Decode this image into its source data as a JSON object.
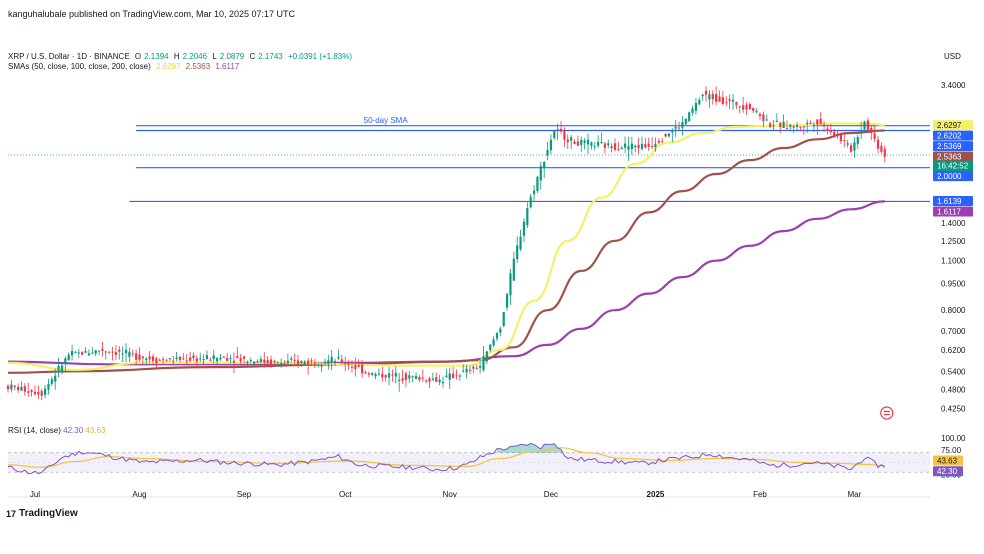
{
  "header": {
    "published": "kanguhalubale published on TradingView.com, Mar 10, 2025 07:17 UTC"
  },
  "legend": {
    "symbol": "XRP / U.S. Dollar · 1D · BINANCE",
    "o_label": "O",
    "o": "2.1394",
    "h_label": "H",
    "h": "2.2046",
    "l_label": "L",
    "l": "2.0879",
    "c_label": "C",
    "c": "2.1743",
    "change": "+0.0391 (+1.83%)",
    "sma_label": "SMAs (50, close, 100, close, 200, close)",
    "sma50": "2.6297",
    "sma100": "2.5363",
    "sma200": "1.6117"
  },
  "currency": "USD",
  "brand": "TradingView",
  "colors": {
    "up": "#089981",
    "down": "#f23645",
    "sma50": "#f5f06a",
    "sma100": "#a0524a",
    "sma200": "#9c3fb0",
    "hline": "#2962ff",
    "rsi": "#7e57c2",
    "rsi_ma": "#f5c242"
  },
  "chart_data": {
    "type": "candlestick",
    "y_scale": "log",
    "ylim": [
      0.4,
      3.7
    ],
    "y_ticks": [
      "3.4000",
      "1.4000",
      "1.2500",
      "1.1000",
      "0.9500",
      "0.8000",
      "0.7000",
      "0.6200",
      "0.5400",
      "0.4800",
      "0.4250"
    ],
    "x_labels": [
      {
        "label": "Jul",
        "day": 8,
        "bold": false
      },
      {
        "label": "Aug",
        "day": 39,
        "bold": false
      },
      {
        "label": "Sep",
        "day": 70,
        "bold": false
      },
      {
        "label": "Oct",
        "day": 100,
        "bold": false
      },
      {
        "label": "Nov",
        "day": 131,
        "bold": false
      },
      {
        "label": "Dec",
        "day": 161,
        "bold": false
      },
      {
        "label": "2025",
        "day": 192,
        "bold": true
      },
      {
        "label": "Feb",
        "day": 223,
        "bold": false
      },
      {
        "label": "Mar",
        "day": 251,
        "bold": false
      }
    ],
    "price_path": [
      [
        0,
        0.49
      ],
      [
        10,
        0.47
      ],
      [
        18,
        0.6
      ],
      [
        28,
        0.62
      ],
      [
        45,
        0.58
      ],
      [
        65,
        0.59
      ],
      [
        80,
        0.57
      ],
      [
        98,
        0.58
      ],
      [
        108,
        0.53
      ],
      [
        120,
        0.52
      ],
      [
        128,
        0.51
      ],
      [
        136,
        0.54
      ],
      [
        140,
        0.56
      ],
      [
        146,
        0.72
      ],
      [
        150,
        1.1
      ],
      [
        154,
        1.55
      ],
      [
        158,
        2.0
      ],
      [
        162,
        2.55
      ],
      [
        168,
        2.35
      ],
      [
        178,
        2.3
      ],
      [
        190,
        2.3
      ],
      [
        200,
        2.65
      ],
      [
        206,
        3.2
      ],
      [
        214,
        3.05
      ],
      [
        220,
        2.95
      ],
      [
        226,
        2.65
      ],
      [
        234,
        2.6
      ],
      [
        240,
        2.7
      ],
      [
        246,
        2.45
      ],
      [
        250,
        2.25
      ],
      [
        254,
        2.7
      ],
      [
        258,
        2.3
      ],
      [
        260,
        2.17
      ]
    ],
    "sma50_path": [
      [
        0,
        0.57
      ],
      [
        20,
        0.545
      ],
      [
        40,
        0.57
      ],
      [
        80,
        0.57
      ],
      [
        120,
        0.56
      ],
      [
        136,
        0.56
      ],
      [
        146,
        0.62
      ],
      [
        156,
        0.85
      ],
      [
        166,
        1.25
      ],
      [
        176,
        1.65
      ],
      [
        186,
        2.05
      ],
      [
        196,
        2.35
      ],
      [
        206,
        2.5
      ],
      [
        216,
        2.6
      ],
      [
        226,
        2.62
      ],
      [
        236,
        2.63
      ],
      [
        246,
        2.66
      ],
      [
        256,
        2.65
      ],
      [
        260,
        2.63
      ]
    ],
    "sma100_path": [
      [
        0,
        0.535
      ],
      [
        20,
        0.54
      ],
      [
        60,
        0.555
      ],
      [
        100,
        0.565
      ],
      [
        130,
        0.575
      ],
      [
        140,
        0.58
      ],
      [
        150,
        0.63
      ],
      [
        160,
        0.8
      ],
      [
        170,
        1.03
      ],
      [
        180,
        1.25
      ],
      [
        190,
        1.5
      ],
      [
        200,
        1.72
      ],
      [
        210,
        1.92
      ],
      [
        220,
        2.1
      ],
      [
        230,
        2.27
      ],
      [
        240,
        2.4
      ],
      [
        250,
        2.5
      ],
      [
        260,
        2.54
      ]
    ],
    "sma200_path": [
      [
        0,
        0.575
      ],
      [
        30,
        0.565
      ],
      [
        60,
        0.565
      ],
      [
        100,
        0.57
      ],
      [
        130,
        0.575
      ],
      [
        150,
        0.595
      ],
      [
        160,
        0.64
      ],
      [
        170,
        0.71
      ],
      [
        180,
        0.8
      ],
      [
        190,
        0.89
      ],
      [
        200,
        0.99
      ],
      [
        210,
        1.1
      ],
      [
        220,
        1.21
      ],
      [
        230,
        1.33
      ],
      [
        240,
        1.44
      ],
      [
        250,
        1.53
      ],
      [
        260,
        1.61
      ]
    ],
    "horizontal_lines": [
      {
        "value": 2.62,
        "start_day": 38
      },
      {
        "value": 2.54,
        "start_day": 38
      },
      {
        "value": 2.0,
        "start_day": 38
      },
      {
        "value": 1.61,
        "start_day": 36
      }
    ],
    "annotation": {
      "text": "50-day SMA",
      "day": 112,
      "value": 2.63
    },
    "price_badges": [
      {
        "text": "2.6297",
        "value": 2.6297,
        "bg": "#f5f06a",
        "fg": "dark"
      },
      {
        "text": "2.6202",
        "value": 2.6202,
        "bg": "#2962ff",
        "fg": "light"
      },
      {
        "text": "2.5369",
        "value": 2.5369,
        "bg": "#2962ff",
        "fg": "light"
      },
      {
        "text": "2.5363",
        "value": 2.5363,
        "bg": "#a0524a",
        "fg": "light"
      },
      {
        "text": "2.1743",
        "value": 2.1743,
        "bg": "#089981",
        "fg": "light"
      },
      {
        "text": "16:42:52",
        "value": 2.1743,
        "bg": "#089981",
        "fg": "light",
        "offset": 11
      },
      {
        "text": "2.0000",
        "value": 2.0,
        "bg": "#2962ff",
        "fg": "light"
      },
      {
        "text": "1.6139",
        "value": 1.6139,
        "bg": "#2962ff",
        "fg": "light"
      },
      {
        "text": "1.6117",
        "value": 1.6117,
        "bg": "#9c3fb0",
        "fg": "light"
      }
    ],
    "rsi": {
      "label": "RSI (14, close)",
      "value": "42.30",
      "ma_value": "43.63",
      "ylim": [
        10,
        100
      ],
      "ticks": [
        "100.00",
        "75.00",
        "25.00"
      ],
      "band": [
        30,
        70
      ],
      "path": [
        [
          0,
          40
        ],
        [
          6,
          30
        ],
        [
          10,
          28
        ],
        [
          16,
          60
        ],
        [
          22,
          72
        ],
        [
          26,
          68
        ],
        [
          32,
          60
        ],
        [
          40,
          50
        ],
        [
          48,
          52
        ],
        [
          56,
          55
        ],
        [
          64,
          50
        ],
        [
          72,
          48
        ],
        [
          80,
          45
        ],
        [
          90,
          52
        ],
        [
          98,
          62
        ],
        [
          104,
          45
        ],
        [
          112,
          42
        ],
        [
          120,
          40
        ],
        [
          126,
          36
        ],
        [
          132,
          38
        ],
        [
          136,
          45
        ],
        [
          140,
          60
        ],
        [
          146,
          78
        ],
        [
          150,
          80
        ],
        [
          154,
          88
        ],
        [
          158,
          82
        ],
        [
          162,
          92
        ],
        [
          166,
          58
        ],
        [
          172,
          55
        ],
        [
          180,
          52
        ],
        [
          188,
          48
        ],
        [
          196,
          56
        ],
        [
          204,
          62
        ],
        [
          208,
          68
        ],
        [
          214,
          60
        ],
        [
          220,
          55
        ],
        [
          226,
          44
        ],
        [
          232,
          45
        ],
        [
          238,
          50
        ],
        [
          246,
          42
        ],
        [
          250,
          36
        ],
        [
          254,
          60
        ],
        [
          258,
          44
        ],
        [
          260,
          42
        ]
      ],
      "ma_path": [
        [
          0,
          45
        ],
        [
          10,
          40
        ],
        [
          20,
          52
        ],
        [
          30,
          62
        ],
        [
          40,
          58
        ],
        [
          60,
          52
        ],
        [
          80,
          48
        ],
        [
          100,
          53
        ],
        [
          120,
          44
        ],
        [
          136,
          42
        ],
        [
          146,
          58
        ],
        [
          156,
          72
        ],
        [
          164,
          80
        ],
        [
          172,
          70
        ],
        [
          182,
          58
        ],
        [
          196,
          54
        ],
        [
          210,
          58
        ],
        [
          222,
          56
        ],
        [
          234,
          50
        ],
        [
          246,
          48
        ],
        [
          254,
          46
        ],
        [
          260,
          43.6
        ]
      ]
    }
  }
}
